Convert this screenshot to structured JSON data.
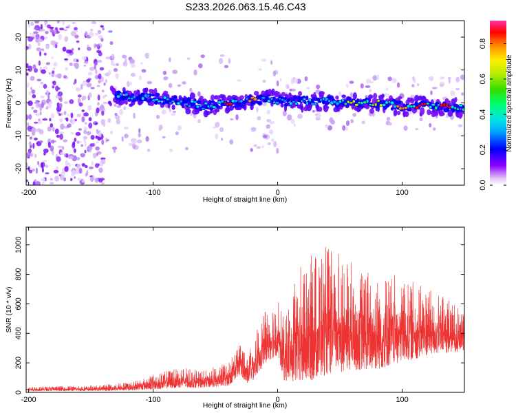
{
  "title": "S233.2026.063.15.46.C43",
  "chart_data": [
    {
      "type": "heatmap",
      "xlabel": "Height of straight line (km)",
      "ylabel": "Frequency (Hz)",
      "xlim": [
        -202,
        150
      ],
      "ylim": [
        -25,
        25
      ],
      "xticks": [
        -200,
        -100,
        0,
        100
      ],
      "yticks": [
        -20,
        -10,
        0,
        10,
        20
      ],
      "colorbar": {
        "label": "Normalized spectral amplitude",
        "range": [
          0,
          0.93
        ],
        "ticks": [
          0.0,
          0.2,
          0.4,
          0.6,
          0.8
        ]
      },
      "ridge": {
        "description_points_km_hz": [
          [
            -130,
            2
          ],
          [
            -100,
            1.5
          ],
          [
            -80,
            0.5
          ],
          [
            -60,
            -1
          ],
          [
            -40,
            0
          ],
          [
            -30,
            0
          ],
          [
            -20,
            1
          ],
          [
            -10,
            1.5
          ],
          [
            0,
            0.5
          ],
          [
            20,
            0.5
          ],
          [
            40,
            0.5
          ],
          [
            60,
            0
          ],
          [
            80,
            0
          ],
          [
            100,
            -1
          ],
          [
            120,
            -1
          ],
          [
            150,
            -1.5
          ]
        ],
        "peak_amplitude_km": [
          [
            -40,
            0.9
          ],
          [
            -20,
            0.85
          ],
          [
            60,
            0.75
          ],
          [
            80,
            0.75
          ],
          [
            100,
            0.8
          ],
          [
            115,
            0.9
          ],
          [
            135,
            0.9
          ]
        ]
      }
    },
    {
      "type": "line",
      "xlabel": "Height of straight line (km)",
      "ylabel": "SNR (10 * v/v)",
      "xlim": [
        -202,
        150
      ],
      "ylim": [
        0,
        1120
      ],
      "xticks": [
        -200,
        -100,
        0,
        100
      ],
      "yticks": [
        0,
        200,
        400,
        600,
        800,
        1000
      ],
      "color": "#ee3333",
      "envelope_km": [
        -202,
        -150,
        -120,
        -100,
        -80,
        -60,
        -40,
        -30,
        -25,
        -20,
        -10,
        0,
        5,
        20,
        40,
        60,
        80,
        100,
        120,
        150
      ],
      "envelope_min": [
        10,
        10,
        12,
        20,
        30,
        30,
        40,
        120,
        60,
        80,
        200,
        250,
        80,
        50,
        120,
        150,
        150,
        200,
        250,
        280
      ],
      "envelope_max": [
        40,
        45,
        70,
        120,
        170,
        150,
        200,
        350,
        270,
        360,
        550,
        650,
        500,
        900,
        1000,
        900,
        800,
        800,
        700,
        600
      ]
    }
  ]
}
